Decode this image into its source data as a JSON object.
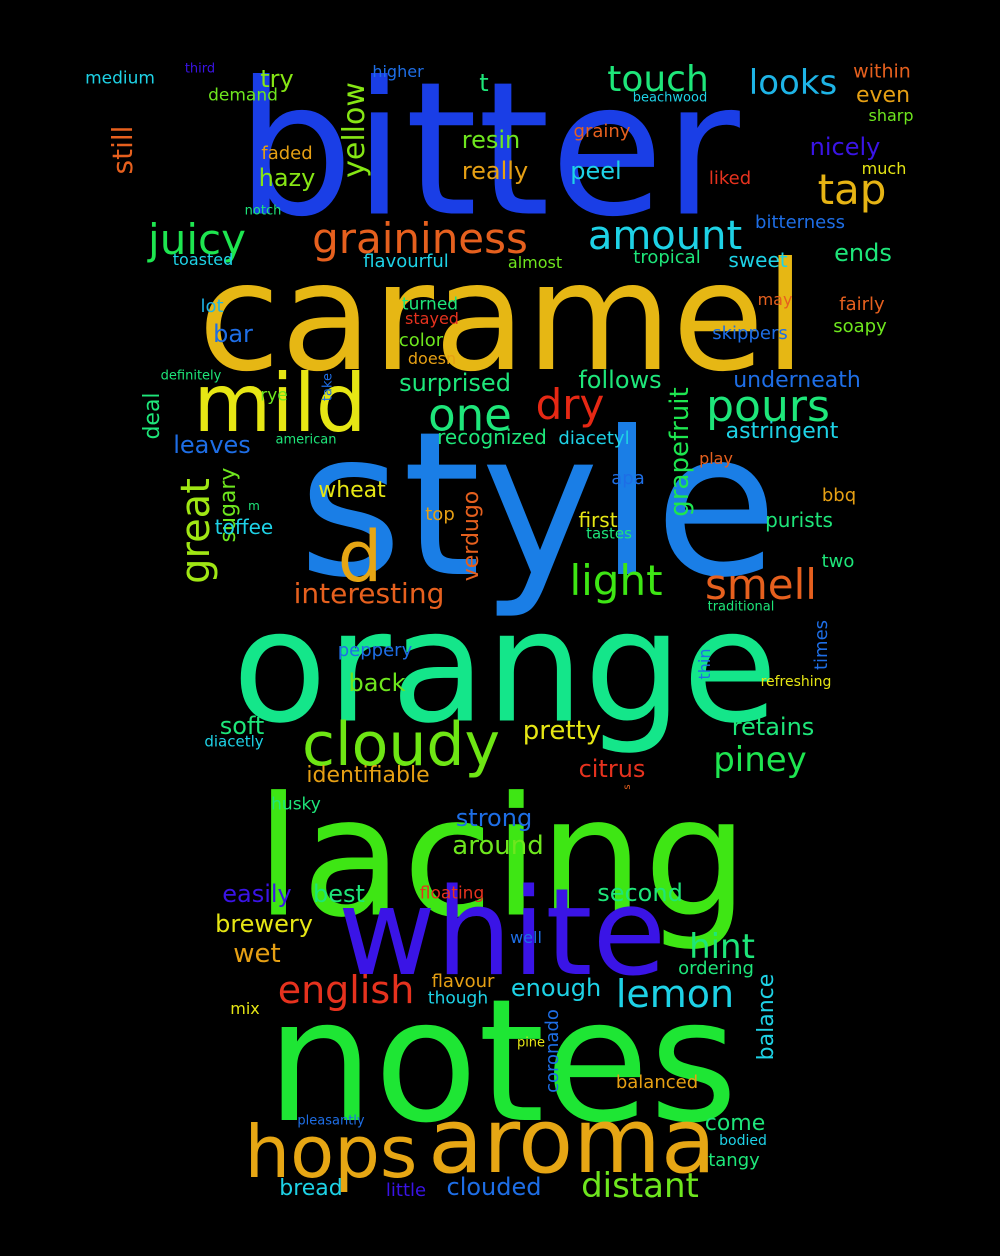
{
  "words": [
    {
      "text": "bitter",
      "color": "#1a3ee6"
    },
    {
      "text": "caramel",
      "color": "#e6b714"
    },
    {
      "text": "style",
      "color": "#1a7ee6"
    },
    {
      "text": "orange",
      "color": "#14e68a"
    },
    {
      "text": "lacing",
      "color": "#3ee614"
    },
    {
      "text": "notes",
      "color": "#1ee634"
    },
    {
      "text": "white",
      "color": "#3a14e6"
    },
    {
      "text": "aroma",
      "color": "#e6a614"
    },
    {
      "text": "hops",
      "color": "#e6a614"
    },
    {
      "text": "mild",
      "color": "#e6e614"
    },
    {
      "text": "d",
      "color": "#e6a614"
    },
    {
      "text": "cloudy",
      "color": "#6ee614"
    },
    {
      "text": "one",
      "color": "#1ee67a"
    },
    {
      "text": "dry",
      "color": "#e62814"
    },
    {
      "text": "pours",
      "color": "#1ee67a"
    },
    {
      "text": "smell",
      "color": "#e6601e"
    },
    {
      "text": "light",
      "color": "#3ee614"
    },
    {
      "text": "graininess",
      "color": "#e6601e"
    },
    {
      "text": "juicy",
      "color": "#1ee650"
    },
    {
      "text": "amount",
      "color": "#1ed2e6"
    },
    {
      "text": "touch",
      "color": "#1ee67a"
    },
    {
      "text": "tap",
      "color": "#e6b414"
    },
    {
      "text": "looks",
      "color": "#1eb4e6"
    },
    {
      "text": "great",
      "color": "#a0e614"
    },
    {
      "text": "yellow",
      "color": "#86e614"
    },
    {
      "text": "lemon",
      "color": "#1ed2e6"
    },
    {
      "text": "english",
      "color": "#e6321e"
    },
    {
      "text": "distant",
      "color": "#6ee61e"
    },
    {
      "text": "hint",
      "color": "#1ee67a"
    },
    {
      "text": "piney",
      "color": "#1ee650"
    },
    {
      "text": "interesting",
      "color": "#e6601e"
    },
    {
      "text": "medium",
      "color": "#1ed2e6"
    },
    {
      "text": "third",
      "color": "#3a14e6"
    },
    {
      "text": "higher",
      "color": "#1e6ee6"
    },
    {
      "text": "try",
      "color": "#86e614"
    },
    {
      "text": "t",
      "color": "#1ee67a"
    },
    {
      "text": "within",
      "color": "#e6601e"
    },
    {
      "text": "beachwood",
      "color": "#1ed2e6"
    },
    {
      "text": "even",
      "color": "#e6a014"
    },
    {
      "text": "demand",
      "color": "#6ee61e"
    },
    {
      "text": "sharp",
      "color": "#6ee61e"
    },
    {
      "text": "still",
      "color": "#e6601e"
    },
    {
      "text": "resin",
      "color": "#6ee61e"
    },
    {
      "text": "grainy",
      "color": "#e6601e"
    },
    {
      "text": "nicely",
      "color": "#3a14e6"
    },
    {
      "text": "faded",
      "color": "#e6a014"
    },
    {
      "text": "hazy",
      "color": "#86e614"
    },
    {
      "text": "really",
      "color": "#e6a014"
    },
    {
      "text": "peel",
      "color": "#1ed2e6"
    },
    {
      "text": "liked",
      "color": "#e6321e"
    },
    {
      "text": "much",
      "color": "#e6e614"
    },
    {
      "text": "notch",
      "color": "#1ee67a"
    },
    {
      "text": "bitterness",
      "color": "#1e6ee6"
    },
    {
      "text": "toasted",
      "color": "#1ed2e6"
    },
    {
      "text": "flavourful",
      "color": "#1ed2e6"
    },
    {
      "text": "almost",
      "color": "#6ee61e"
    },
    {
      "text": "tropical",
      "color": "#1ee67a"
    },
    {
      "text": "sweet",
      "color": "#1ed2e6"
    },
    {
      "text": "ends",
      "color": "#1ee67a"
    },
    {
      "text": "lot",
      "color": "#1eb4e6"
    },
    {
      "text": "turned",
      "color": "#1ee67a"
    },
    {
      "text": "stayed",
      "color": "#e6321e"
    },
    {
      "text": "may",
      "color": "#e6601e"
    },
    {
      "text": "fairly",
      "color": "#e6601e"
    },
    {
      "text": "bar",
      "color": "#1e6ee6"
    },
    {
      "text": "color",
      "color": "#6ee61e"
    },
    {
      "text": "doesn",
      "color": "#e6a014"
    },
    {
      "text": "skippers",
      "color": "#1e6ee6"
    },
    {
      "text": "soapy",
      "color": "#6ee61e"
    },
    {
      "text": "definitely",
      "color": "#1ee67a"
    },
    {
      "text": "take",
      "color": "#1e6ee6"
    },
    {
      "text": "surprised",
      "color": "#1ee67a"
    },
    {
      "text": "follows",
      "color": "#1ee67a"
    },
    {
      "text": "underneath",
      "color": "#1e6ee6"
    },
    {
      "text": "rye",
      "color": "#6ee61e"
    },
    {
      "text": "deal",
      "color": "#1ee67a"
    },
    {
      "text": "leaves",
      "color": "#1e6ee6"
    },
    {
      "text": "american",
      "color": "#1ee67a"
    },
    {
      "text": "recognized",
      "color": "#1ee67a"
    },
    {
      "text": "diacetyl",
      "color": "#1ed2e6"
    },
    {
      "text": "grapefruit",
      "color": "#1ee650"
    },
    {
      "text": "astringent",
      "color": "#1ed2e6"
    },
    {
      "text": "play",
      "color": "#e6601e"
    },
    {
      "text": "sugary",
      "color": "#6ee61e"
    },
    {
      "text": "verdugo",
      "color": "#e6601e"
    },
    {
      "text": "wheat",
      "color": "#e6e614"
    },
    {
      "text": "apa",
      "color": "#1e6ee6"
    },
    {
      "text": "bbq",
      "color": "#e6a014"
    },
    {
      "text": "m",
      "color": "#1ee67a"
    },
    {
      "text": "toffee",
      "color": "#1ed2e6"
    },
    {
      "text": "top",
      "color": "#e6a014"
    },
    {
      "text": "first",
      "color": "#e6e614"
    },
    {
      "text": "tastes",
      "color": "#1ee67a"
    },
    {
      "text": "purists",
      "color": "#1ee67a"
    },
    {
      "text": "two",
      "color": "#1ee67a"
    },
    {
      "text": "traditional",
      "color": "#1ee67a"
    },
    {
      "text": "times",
      "color": "#1e6ee6"
    },
    {
      "text": "peppery",
      "color": "#1e6ee6"
    },
    {
      "text": "thin",
      "color": "#1e6ee6"
    },
    {
      "text": "back",
      "color": "#6ee61e"
    },
    {
      "text": "refreshing",
      "color": "#e6e614"
    },
    {
      "text": "soft",
      "color": "#1ee67a"
    },
    {
      "text": "pretty",
      "color": "#e6e614"
    },
    {
      "text": "retains",
      "color": "#1ee67a"
    },
    {
      "text": "diacetly",
      "color": "#1ed2e6"
    },
    {
      "text": "identifiable",
      "color": "#e6a014"
    },
    {
      "text": "citrus",
      "color": "#e6321e"
    },
    {
      "text": "s",
      "color": "#e6601e"
    },
    {
      "text": "husky",
      "color": "#1ee67a"
    },
    {
      "text": "strong",
      "color": "#1e6ee6"
    },
    {
      "text": "around",
      "color": "#6ee61e"
    },
    {
      "text": "easily",
      "color": "#3a14e6"
    },
    {
      "text": "best",
      "color": "#1ee67a"
    },
    {
      "text": "floating",
      "color": "#e6321e"
    },
    {
      "text": "second",
      "color": "#1ee67a"
    },
    {
      "text": "brewery",
      "color": "#e6e614"
    },
    {
      "text": "wet",
      "color": "#e6a014"
    },
    {
      "text": "well",
      "color": "#1e6ee6"
    },
    {
      "text": "ordering",
      "color": "#1ee67a"
    },
    {
      "text": "balance",
      "color": "#1ed2e6"
    },
    {
      "text": "flavour",
      "color": "#e6a014"
    },
    {
      "text": "enough",
      "color": "#1ed2e6"
    },
    {
      "text": "mix",
      "color": "#e6e614"
    },
    {
      "text": "though",
      "color": "#1ed2e6"
    },
    {
      "text": "coronado",
      "color": "#1e6ee6"
    },
    {
      "text": "pine",
      "color": "#e6e614"
    },
    {
      "text": "balanced",
      "color": "#e6a014"
    },
    {
      "text": "pleasantly",
      "color": "#1e6ee6"
    },
    {
      "text": "come",
      "color": "#1ee67a"
    },
    {
      "text": "bodied",
      "color": "#1ed2e6"
    },
    {
      "text": "tangy",
      "color": "#1ee67a"
    },
    {
      "text": "bread",
      "color": "#1ed2e6"
    },
    {
      "text": "little",
      "color": "#3a14e6"
    },
    {
      "text": "clouded",
      "color": "#1e6ee6"
    }
  ]
}
